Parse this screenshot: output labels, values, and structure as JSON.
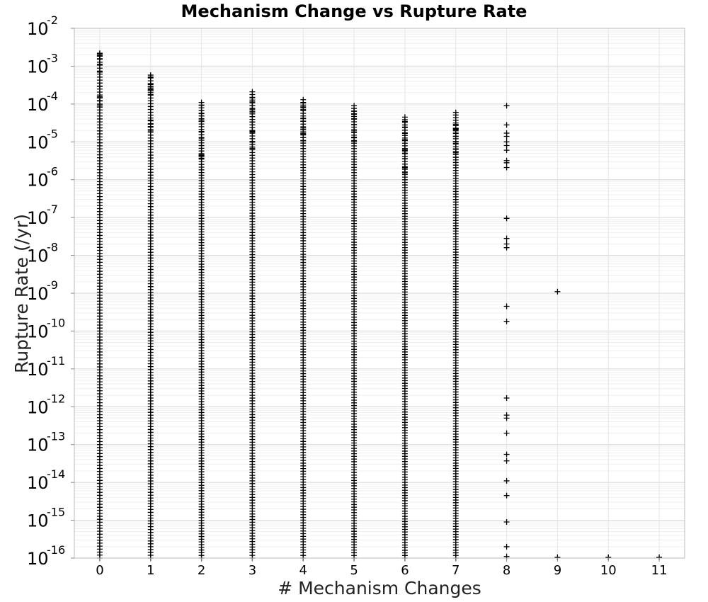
{
  "chart_data": {
    "type": "scatter",
    "title": "Mechanism Change vs Rupture Rate",
    "xlabel": "# Mechanism Changes",
    "ylabel": "Rupture Rate (/yr)",
    "y_scale": "log",
    "ylim": [
      1e-16,
      0.01
    ],
    "xlim": [
      -0.5,
      11.5
    ],
    "grid": true,
    "marker": "+",
    "marker_color": "#000000",
    "x_ticks": [
      "0",
      "1",
      "2",
      "3",
      "4",
      "5",
      "6",
      "7",
      "8",
      "9",
      "10",
      "11"
    ],
    "y_ticks": [
      {
        "base": "10",
        "exp": "-16"
      },
      {
        "base": "10",
        "exp": "-15"
      },
      {
        "base": "10",
        "exp": "-14"
      },
      {
        "base": "10",
        "exp": "-13"
      },
      {
        "base": "10",
        "exp": "-12"
      },
      {
        "base": "10",
        "exp": "-11"
      },
      {
        "base": "10",
        "exp": "-10"
      },
      {
        "base": "10",
        "exp": "-9"
      },
      {
        "base": "10",
        "exp": "-8"
      },
      {
        "base": "10",
        "exp": "-7"
      },
      {
        "base": "10",
        "exp": "-6"
      },
      {
        "base": "10",
        "exp": "-5"
      },
      {
        "base": "10",
        "exp": "-4"
      },
      {
        "base": "10",
        "exp": "-3"
      },
      {
        "base": "10",
        "exp": "-2"
      }
    ],
    "columns": [
      {
        "x": 0,
        "min_rate": 1e-16,
        "max_rate": 0.0022
      },
      {
        "x": 1,
        "min_rate": 1e-16,
        "max_rate": 0.00058
      },
      {
        "x": 2,
        "min_rate": 1e-16,
        "max_rate": 0.00011
      },
      {
        "x": 3,
        "min_rate": 1e-16,
        "max_rate": 0.00021
      },
      {
        "x": 4,
        "min_rate": 1e-16,
        "max_rate": 0.00013
      },
      {
        "x": 5,
        "min_rate": 1e-16,
        "max_rate": 9e-05
      },
      {
        "x": 6,
        "min_rate": 1e-16,
        "max_rate": 4.5e-05
      },
      {
        "x": 7,
        "min_rate": 1e-16,
        "max_rate": 6e-05
      }
    ],
    "sparse_points": [
      {
        "x": 8,
        "y": 9e-05
      },
      {
        "x": 8,
        "y": 2.8e-05
      },
      {
        "x": 8,
        "y": 1.7e-05
      },
      {
        "x": 8,
        "y": 1.4e-05
      },
      {
        "x": 8,
        "y": 1e-05
      },
      {
        "x": 8,
        "y": 8e-06
      },
      {
        "x": 8,
        "y": 6e-06
      },
      {
        "x": 8,
        "y": 3.2e-06
      },
      {
        "x": 8,
        "y": 2.8e-06
      },
      {
        "x": 8,
        "y": 2.1e-06
      },
      {
        "x": 8,
        "y": 9.5e-08
      },
      {
        "x": 8,
        "y": 2.8e-08
      },
      {
        "x": 8,
        "y": 2e-08
      },
      {
        "x": 8,
        "y": 1.6e-08
      },
      {
        "x": 8,
        "y": 4.5e-10
      },
      {
        "x": 8,
        "y": 1.8e-10
      },
      {
        "x": 8,
        "y": 1.7e-12
      },
      {
        "x": 8,
        "y": 6e-13
      },
      {
        "x": 8,
        "y": 5e-13
      },
      {
        "x": 8,
        "y": 2e-13
      },
      {
        "x": 8,
        "y": 5.5e-14
      },
      {
        "x": 8,
        "y": 3.7e-14
      },
      {
        "x": 8,
        "y": 1.1e-14
      },
      {
        "x": 8,
        "y": 4.5e-15
      },
      {
        "x": 8,
        "y": 9e-16
      },
      {
        "x": 8,
        "y": 2e-16
      },
      {
        "x": 8,
        "y": 1.1e-16
      },
      {
        "x": 9,
        "y": 1.1e-09
      },
      {
        "x": 9,
        "y": 1.05e-16
      },
      {
        "x": 10,
        "y": 1.05e-16
      },
      {
        "x": 11,
        "y": 1.05e-16
      }
    ]
  }
}
